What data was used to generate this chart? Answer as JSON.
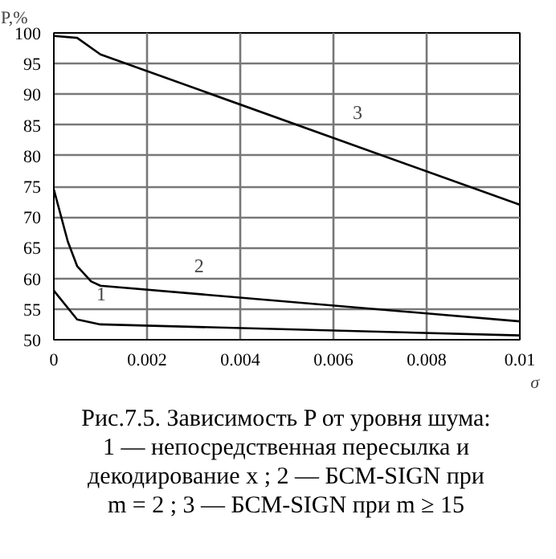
{
  "chart_data": {
    "type": "line",
    "xlabel": "σ",
    "ylabel": "P,%",
    "xlim": [
      0,
      0.01
    ],
    "xticks": [
      0,
      0.002,
      0.004,
      0.006,
      0.008,
      0.01
    ],
    "ylim": [
      50,
      100
    ],
    "yticks": [
      50,
      55,
      60,
      65,
      70,
      75,
      80,
      85,
      90,
      95,
      100
    ],
    "grid": true,
    "series": [
      {
        "color": "#000000",
        "x": [
          0,
          0.0005,
          0.001,
          0.01
        ],
        "values": [
          58,
          53.3,
          52.5,
          50.7
        ]
      },
      {
        "color": "#000000",
        "x": [
          0,
          0.0003,
          0.0005,
          0.0008,
          0.001,
          0.01
        ],
        "values": [
          74.5,
          66,
          62,
          59.5,
          58.8,
          53
        ]
      },
      {
        "color": "#000000",
        "x": [
          0,
          0.0005,
          0.001,
          0.01
        ],
        "values": [
          99.5,
          99.2,
          96.5,
          72
        ]
      }
    ],
    "annotations": [
      {
        "text": "1",
        "x": 0.0005,
        "y": 53.3
      },
      {
        "text": "2",
        "x": 0.0026,
        "y": 57.8
      },
      {
        "text": "3",
        "x": 0.006,
        "y": 82.9
      },
      "Рис.7.5. Зависимость  P  от уровня шума:",
      "1 — непосредственная пересылка и",
      "декодирование  x ;  2 — БСМ-SIGN при",
      "m = 2 ;  3 — БСМ-SIGN при  m ≥ 15"
    ]
  }
}
